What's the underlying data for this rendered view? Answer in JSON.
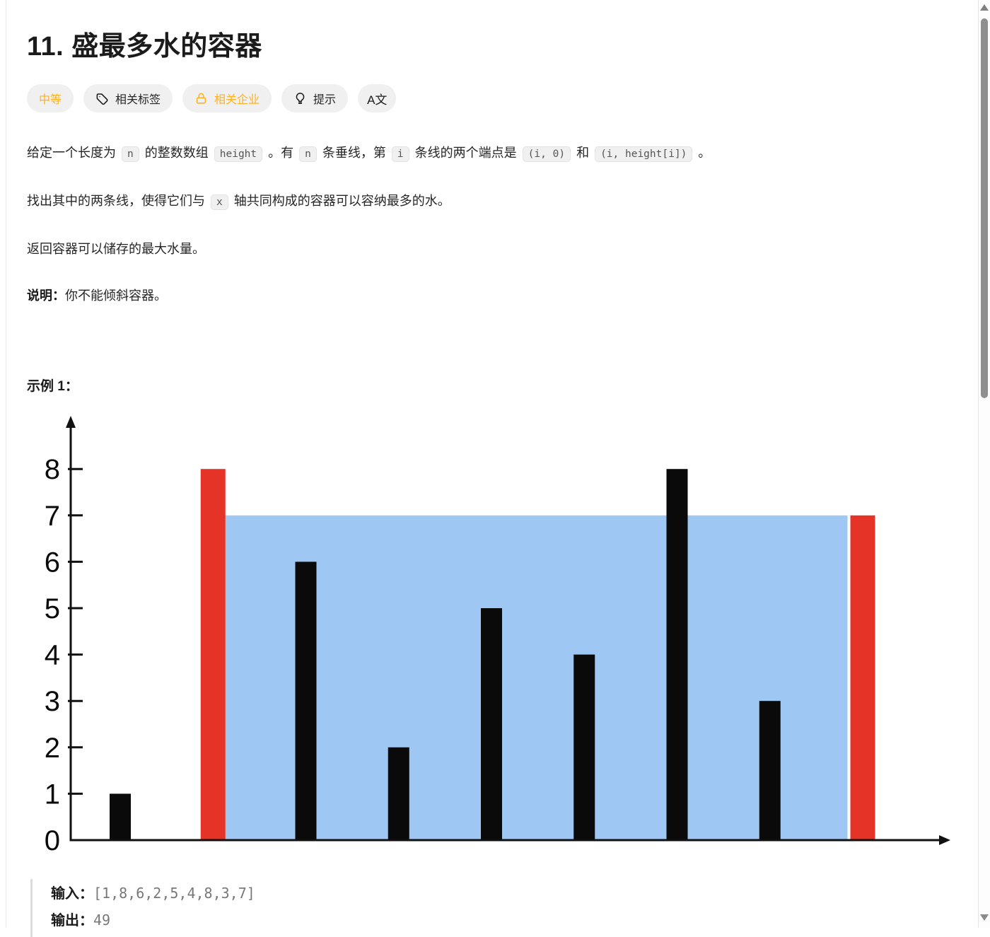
{
  "colors": {
    "difficulty_medium": "#ffb120",
    "companies_amber": "#ffb120",
    "bar_black": "#0a0a0a",
    "bar_red": "#e53327",
    "water_blue": "#9fc7f3"
  },
  "header": {
    "title": "11. 盛最多水的容器"
  },
  "toolbar": {
    "difficulty": "中等",
    "tags": "相关标签",
    "companies": "相关企业",
    "hint": "提示",
    "translate": "A文"
  },
  "description": {
    "paragraphs": [
      {
        "segments": [
          {
            "text": "给定一个长度为 "
          },
          {
            "code": "n"
          },
          {
            "text": " 的整数数组 "
          },
          {
            "code": "height"
          },
          {
            "text": " 。有 "
          },
          {
            "code": "n"
          },
          {
            "text": " 条垂线，第 "
          },
          {
            "code": "i"
          },
          {
            "text": " 条线的两个端点是 "
          },
          {
            "code": "(i, 0)"
          },
          {
            "text": " 和 "
          },
          {
            "code": "(i, height[i])"
          },
          {
            "text": " 。"
          }
        ]
      },
      {
        "segments": [
          {
            "text": "找出其中的两条线，使得它们与 "
          },
          {
            "code": "x"
          },
          {
            "text": " 轴共同构成的容器可以容纳最多的水。"
          }
        ]
      },
      {
        "segments": [
          {
            "text": "返回容器可以储存的最大水量。"
          }
        ]
      },
      {
        "segments": [
          {
            "bold": "说明："
          },
          {
            "text": "你不能倾斜容器。"
          }
        ]
      }
    ]
  },
  "example": {
    "heading": "示例 1：",
    "input_label": "输入：",
    "input_value": "[1,8,6,2,5,4,8,3,7]",
    "output_label": "输出：",
    "output_value": "49"
  },
  "chart_data": {
    "type": "bar",
    "x": [
      0,
      1,
      2,
      3,
      4,
      5,
      6,
      7,
      8
    ],
    "values": [
      1,
      8,
      6,
      2,
      5,
      4,
      8,
      3,
      7
    ],
    "highlight_indices": [
      1,
      8
    ],
    "bar_color": "#0a0a0a",
    "highlight_color": "#e53327",
    "water": {
      "from_index": 1,
      "to_index": 8,
      "level": 7,
      "color": "#9fc7f3"
    },
    "yticks": [
      0,
      1,
      2,
      3,
      4,
      5,
      6,
      7,
      8
    ],
    "ylim": [
      0,
      8.9
    ],
    "grid": false,
    "legend": false,
    "title": "",
    "xlabel": "",
    "ylabel": ""
  }
}
